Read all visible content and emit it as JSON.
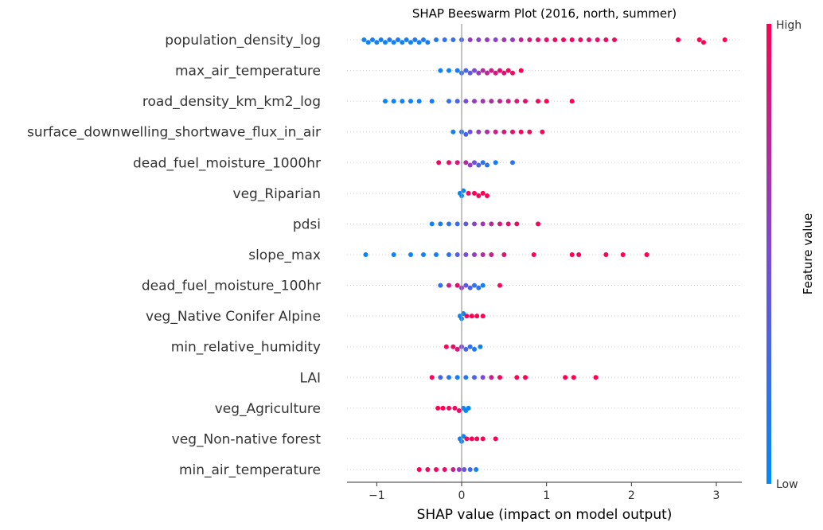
{
  "chart_data": {
    "type": "scatter",
    "subtype": "shap-beeswarm",
    "title": "SHAP Beeswarm Plot (2016, north, summer)",
    "xlabel": "SHAP value (impact on model output)",
    "xlim": [
      -1.35,
      3.3
    ],
    "xticks": [
      -1,
      0,
      1,
      2,
      3
    ],
    "xtick_labels": [
      "−1",
      "0",
      "1",
      "2",
      "3"
    ],
    "colorbar": {
      "title": "Feature value",
      "high_label": "High",
      "low_label": "Low",
      "low_color": "#008afb",
      "high_color": "#ff0052"
    },
    "zero_line_color": "#999999",
    "features": [
      {
        "name": "population_density_log",
        "points": [
          {
            "x": -1.15,
            "f": 0.05
          },
          {
            "x": -1.1,
            "f": 0.05
          },
          {
            "x": -1.05,
            "f": 0.08
          },
          {
            "x": -1.0,
            "f": 0.05
          },
          {
            "x": -0.95,
            "f": 0.1
          },
          {
            "x": -0.9,
            "f": 0.05
          },
          {
            "x": -0.85,
            "f": 0.1
          },
          {
            "x": -0.8,
            "f": 0.05
          },
          {
            "x": -0.75,
            "f": 0.1
          },
          {
            "x": -0.7,
            "f": 0.05
          },
          {
            "x": -0.65,
            "f": 0.1
          },
          {
            "x": -0.6,
            "f": 0.08
          },
          {
            "x": -0.55,
            "f": 0.1
          },
          {
            "x": -0.5,
            "f": 0.08
          },
          {
            "x": -0.45,
            "f": 0.12
          },
          {
            "x": -0.4,
            "f": 0.1
          },
          {
            "x": -0.3,
            "f": 0.15
          },
          {
            "x": -0.2,
            "f": 0.2
          },
          {
            "x": -0.1,
            "f": 0.2
          },
          {
            "x": 0.0,
            "f": 0.3
          },
          {
            "x": 0.1,
            "f": 0.6
          },
          {
            "x": 0.2,
            "f": 0.55
          },
          {
            "x": 0.3,
            "f": 0.6
          },
          {
            "x": 0.4,
            "f": 0.55
          },
          {
            "x": 0.5,
            "f": 0.65
          },
          {
            "x": 0.6,
            "f": 0.6
          },
          {
            "x": 0.7,
            "f": 0.75
          },
          {
            "x": 0.8,
            "f": 0.85
          },
          {
            "x": 0.9,
            "f": 0.9
          },
          {
            "x": 1.0,
            "f": 0.9
          },
          {
            "x": 1.1,
            "f": 0.95
          },
          {
            "x": 1.2,
            "f": 0.95
          },
          {
            "x": 1.3,
            "f": 0.95
          },
          {
            "x": 1.4,
            "f": 0.95
          },
          {
            "x": 1.5,
            "f": 0.9
          },
          {
            "x": 1.6,
            "f": 0.9
          },
          {
            "x": 1.7,
            "f": 0.95
          },
          {
            "x": 1.8,
            "f": 0.95
          },
          {
            "x": 2.55,
            "f": 1.0
          },
          {
            "x": 2.8,
            "f": 1.0
          },
          {
            "x": 2.85,
            "f": 1.0
          },
          {
            "x": 3.1,
            "f": 1.0
          }
        ]
      },
      {
        "name": "max_air_temperature",
        "points": [
          {
            "x": -0.25,
            "f": 0.05
          },
          {
            "x": -0.15,
            "f": 0.05
          },
          {
            "x": -0.05,
            "f": 0.1
          },
          {
            "x": 0.0,
            "f": 0.2
          },
          {
            "x": 0.05,
            "f": 0.3
          },
          {
            "x": 0.1,
            "f": 0.4
          },
          {
            "x": 0.15,
            "f": 0.5
          },
          {
            "x": 0.2,
            "f": 0.6
          },
          {
            "x": 0.25,
            "f": 0.7
          },
          {
            "x": 0.3,
            "f": 0.75
          },
          {
            "x": 0.35,
            "f": 0.8
          },
          {
            "x": 0.4,
            "f": 0.85
          },
          {
            "x": 0.45,
            "f": 0.9
          },
          {
            "x": 0.5,
            "f": 0.9
          },
          {
            "x": 0.55,
            "f": 0.95
          },
          {
            "x": 0.6,
            "f": 0.95
          },
          {
            "x": 0.7,
            "f": 1.0
          }
        ]
      },
      {
        "name": "road_density_km_km2_log",
        "points": [
          {
            "x": -0.9,
            "f": 0.05
          },
          {
            "x": -0.8,
            "f": 0.05
          },
          {
            "x": -0.7,
            "f": 0.05
          },
          {
            "x": -0.6,
            "f": 0.05
          },
          {
            "x": -0.5,
            "f": 0.08
          },
          {
            "x": -0.35,
            "f": 0.1
          },
          {
            "x": -0.15,
            "f": 0.2
          },
          {
            "x": -0.05,
            "f": 0.3
          },
          {
            "x": 0.05,
            "f": 0.5
          },
          {
            "x": 0.15,
            "f": 0.6
          },
          {
            "x": 0.25,
            "f": 0.65
          },
          {
            "x": 0.35,
            "f": 0.7
          },
          {
            "x": 0.45,
            "f": 0.75
          },
          {
            "x": 0.55,
            "f": 0.8
          },
          {
            "x": 0.65,
            "f": 0.85
          },
          {
            "x": 0.75,
            "f": 0.9
          },
          {
            "x": 0.9,
            "f": 0.95
          },
          {
            "x": 1.0,
            "f": 1.0
          },
          {
            "x": 1.3,
            "f": 1.0
          }
        ]
      },
      {
        "name": "surface_downwelling_shortwave_flux_in_air",
        "points": [
          {
            "x": -0.1,
            "f": 0.05
          },
          {
            "x": 0.0,
            "f": 0.15
          },
          {
            "x": 0.05,
            "f": 0.3
          },
          {
            "x": 0.1,
            "f": 0.45
          },
          {
            "x": 0.2,
            "f": 0.6
          },
          {
            "x": 0.3,
            "f": 0.7
          },
          {
            "x": 0.4,
            "f": 0.8
          },
          {
            "x": 0.5,
            "f": 0.85
          },
          {
            "x": 0.6,
            "f": 0.9
          },
          {
            "x": 0.7,
            "f": 0.95
          },
          {
            "x": 0.8,
            "f": 0.95
          },
          {
            "x": 0.95,
            "f": 1.0
          }
        ]
      },
      {
        "name": "dead_fuel_moisture_1000hr",
        "points": [
          {
            "x": -0.27,
            "f": 0.95
          },
          {
            "x": -0.15,
            "f": 0.9
          },
          {
            "x": -0.05,
            "f": 0.85
          },
          {
            "x": 0.05,
            "f": 0.7
          },
          {
            "x": 0.1,
            "f": 0.6
          },
          {
            "x": 0.15,
            "f": 0.45
          },
          {
            "x": 0.2,
            "f": 0.3
          },
          {
            "x": 0.25,
            "f": 0.2
          },
          {
            "x": 0.3,
            "f": 0.15
          },
          {
            "x": 0.4,
            "f": 0.1
          },
          {
            "x": 0.6,
            "f": 0.2
          }
        ]
      },
      {
        "name": "veg_Riparian",
        "points": [
          {
            "x": -0.02,
            "f": 0.02
          },
          {
            "x": 0.0,
            "f": 0.02
          },
          {
            "x": 0.02,
            "f": 0.02
          },
          {
            "x": 0.08,
            "f": 0.95
          },
          {
            "x": 0.15,
            "f": 1.0
          },
          {
            "x": 0.2,
            "f": 0.95
          },
          {
            "x": 0.25,
            "f": 1.0
          },
          {
            "x": 0.3,
            "f": 1.0
          }
        ]
      },
      {
        "name": "pdsi",
        "points": [
          {
            "x": -0.35,
            "f": 0.05
          },
          {
            "x": -0.25,
            "f": 0.1
          },
          {
            "x": -0.15,
            "f": 0.15
          },
          {
            "x": -0.05,
            "f": 0.25
          },
          {
            "x": 0.05,
            "f": 0.4
          },
          {
            "x": 0.15,
            "f": 0.55
          },
          {
            "x": 0.25,
            "f": 0.65
          },
          {
            "x": 0.35,
            "f": 0.75
          },
          {
            "x": 0.45,
            "f": 0.85
          },
          {
            "x": 0.55,
            "f": 0.9
          },
          {
            "x": 0.65,
            "f": 0.95
          },
          {
            "x": 0.9,
            "f": 1.0
          }
        ]
      },
      {
        "name": "slope_max",
        "points": [
          {
            "x": -1.13,
            "f": 0.05
          },
          {
            "x": -0.8,
            "f": 0.05
          },
          {
            "x": -0.6,
            "f": 0.05
          },
          {
            "x": -0.45,
            "f": 0.08
          },
          {
            "x": -0.3,
            "f": 0.1
          },
          {
            "x": -0.15,
            "f": 0.2
          },
          {
            "x": -0.05,
            "f": 0.35
          },
          {
            "x": 0.05,
            "f": 0.5
          },
          {
            "x": 0.15,
            "f": 0.6
          },
          {
            "x": 0.25,
            "f": 0.7
          },
          {
            "x": 0.35,
            "f": 0.8
          },
          {
            "x": 0.5,
            "f": 0.9
          },
          {
            "x": 0.85,
            "f": 0.95
          },
          {
            "x": 1.3,
            "f": 1.0
          },
          {
            "x": 1.38,
            "f": 1.0
          },
          {
            "x": 1.7,
            "f": 1.0
          },
          {
            "x": 1.9,
            "f": 1.0
          },
          {
            "x": 2.18,
            "f": 1.0
          }
        ]
      },
      {
        "name": "dead_fuel_moisture_100hr",
        "points": [
          {
            "x": -0.25,
            "f": 0.2
          },
          {
            "x": -0.15,
            "f": 0.8
          },
          {
            "x": -0.05,
            "f": 0.9
          },
          {
            "x": 0.0,
            "f": 0.6
          },
          {
            "x": 0.05,
            "f": 0.4
          },
          {
            "x": 0.1,
            "f": 0.3
          },
          {
            "x": 0.15,
            "f": 0.2
          },
          {
            "x": 0.2,
            "f": 0.15
          },
          {
            "x": 0.25,
            "f": 0.1
          },
          {
            "x": 0.45,
            "f": 0.95
          }
        ]
      },
      {
        "name": "veg_Native Conifer Alpine",
        "points": [
          {
            "x": -0.02,
            "f": 0.02
          },
          {
            "x": 0.0,
            "f": 0.02
          },
          {
            "x": 0.02,
            "f": 0.02
          },
          {
            "x": 0.06,
            "f": 0.95
          },
          {
            "x": 0.12,
            "f": 1.0
          },
          {
            "x": 0.18,
            "f": 1.0
          },
          {
            "x": 0.25,
            "f": 1.0
          }
        ]
      },
      {
        "name": "min_relative_humidity",
        "points": [
          {
            "x": -0.18,
            "f": 0.95
          },
          {
            "x": -0.1,
            "f": 0.95
          },
          {
            "x": -0.05,
            "f": 0.85
          },
          {
            "x": 0.0,
            "f": 0.5
          },
          {
            "x": 0.05,
            "f": 0.3
          },
          {
            "x": 0.1,
            "f": 0.2
          },
          {
            "x": 0.15,
            "f": 0.1
          },
          {
            "x": 0.22,
            "f": 0.05
          }
        ]
      },
      {
        "name": "LAI",
        "points": [
          {
            "x": -0.35,
            "f": 0.95
          },
          {
            "x": -0.25,
            "f": 0.3
          },
          {
            "x": -0.15,
            "f": 0.15
          },
          {
            "x": -0.05,
            "f": 0.1
          },
          {
            "x": 0.05,
            "f": 0.15
          },
          {
            "x": 0.15,
            "f": 0.3
          },
          {
            "x": 0.25,
            "f": 0.5
          },
          {
            "x": 0.35,
            "f": 0.8
          },
          {
            "x": 0.45,
            "f": 0.95
          },
          {
            "x": 0.65,
            "f": 1.0
          },
          {
            "x": 0.75,
            "f": 1.0
          },
          {
            "x": 1.22,
            "f": 1.0
          },
          {
            "x": 1.32,
            "f": 1.0
          },
          {
            "x": 1.58,
            "f": 1.0
          }
        ]
      },
      {
        "name": "veg_Agriculture",
        "points": [
          {
            "x": -0.28,
            "f": 1.0
          },
          {
            "x": -0.22,
            "f": 1.0
          },
          {
            "x": -0.15,
            "f": 0.95
          },
          {
            "x": -0.08,
            "f": 0.95
          },
          {
            "x": -0.03,
            "f": 0.9
          },
          {
            "x": 0.02,
            "f": 0.05
          },
          {
            "x": 0.05,
            "f": 0.02
          },
          {
            "x": 0.08,
            "f": 0.02
          }
        ]
      },
      {
        "name": "veg_Non-native forest",
        "points": [
          {
            "x": -0.02,
            "f": 0.02
          },
          {
            "x": 0.0,
            "f": 0.02
          },
          {
            "x": 0.02,
            "f": 0.02
          },
          {
            "x": 0.06,
            "f": 0.95
          },
          {
            "x": 0.12,
            "f": 1.0
          },
          {
            "x": 0.18,
            "f": 1.0
          },
          {
            "x": 0.25,
            "f": 1.0
          },
          {
            "x": 0.4,
            "f": 1.0
          }
        ]
      },
      {
        "name": "min_air_temperature",
        "points": [
          {
            "x": -0.5,
            "f": 1.0
          },
          {
            "x": -0.4,
            "f": 0.95
          },
          {
            "x": -0.3,
            "f": 0.95
          },
          {
            "x": -0.2,
            "f": 0.9
          },
          {
            "x": -0.1,
            "f": 0.8
          },
          {
            "x": -0.03,
            "f": 0.6
          },
          {
            "x": 0.03,
            "f": 0.4
          },
          {
            "x": 0.1,
            "f": 0.25
          },
          {
            "x": 0.17,
            "f": 0.1
          }
        ]
      }
    ]
  }
}
